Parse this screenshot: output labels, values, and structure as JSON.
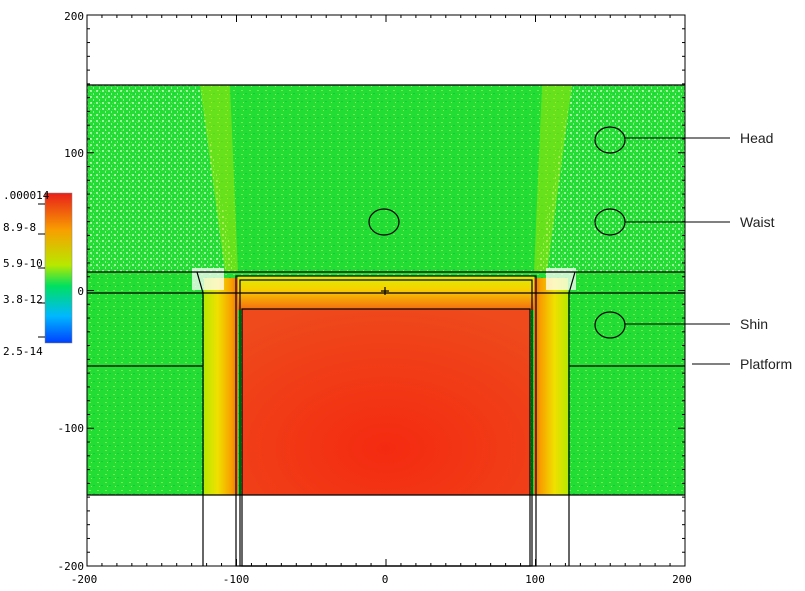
{
  "axes": {
    "x_ticks": [
      "-200",
      "-100",
      "0",
      "100",
      "200"
    ],
    "y_ticks": [
      "200",
      "100",
      "0",
      "-100",
      "-200"
    ]
  },
  "colorbar": {
    "labels": [
      ".000014",
      "8.9-8",
      "5.9-10",
      "3.8-12",
      "2.5-14"
    ],
    "colors": [
      "#e8201a",
      "#f8a000",
      "#b8e800",
      "#00e060",
      "#00b8ff",
      "#0040ff"
    ]
  },
  "annotations": {
    "head": "Head",
    "waist": "Waist",
    "shin": "Shin",
    "platform": "Platform"
  },
  "colors": {
    "field_green": "#22dd33",
    "core_red": "#f03818",
    "gradient_yellow": "#f0e800",
    "outline": "#000000"
  }
}
